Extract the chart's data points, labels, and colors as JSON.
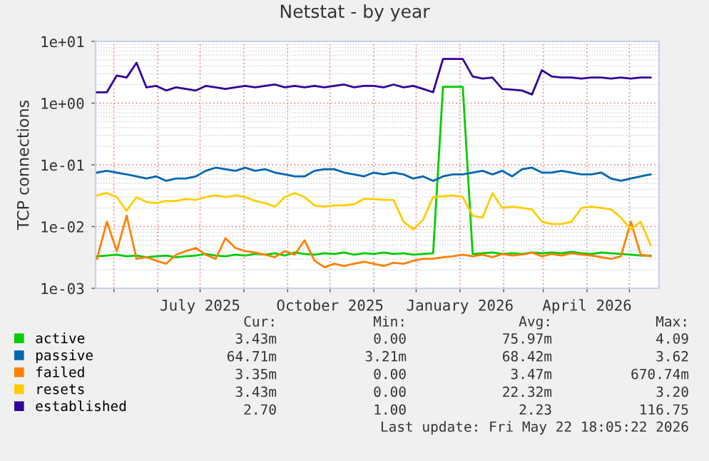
{
  "chart_data": {
    "type": "line",
    "title": "Netstat - by year",
    "ylabel": "TCP connections",
    "x": [
      "2025-04-19",
      "2025-04-26",
      "2025-05-03",
      "2025-05-10",
      "2025-05-17",
      "2025-05-24",
      "2025-05-31",
      "2025-06-07",
      "2025-06-14",
      "2025-06-21",
      "2025-06-28",
      "2025-07-05",
      "2025-07-12",
      "2025-07-19",
      "2025-07-26",
      "2025-08-02",
      "2025-08-09",
      "2025-08-16",
      "2025-08-23",
      "2025-08-30",
      "2025-09-06",
      "2025-09-13",
      "2025-09-20",
      "2025-09-27",
      "2025-10-04",
      "2025-10-11",
      "2025-10-18",
      "2025-10-25",
      "2025-11-01",
      "2025-11-08",
      "2025-11-15",
      "2025-11-22",
      "2025-11-29",
      "2025-12-06",
      "2025-12-13",
      "2025-12-20",
      "2025-12-27",
      "2026-01-03",
      "2026-01-10",
      "2026-01-17",
      "2026-01-24",
      "2026-01-31",
      "2026-02-07",
      "2026-02-14",
      "2026-02-21",
      "2026-02-28",
      "2026-03-07",
      "2026-03-14",
      "2026-03-21",
      "2026-03-28",
      "2026-04-04",
      "2026-04-11",
      "2026-04-18",
      "2026-04-25",
      "2026-05-02",
      "2026-05-09",
      "2026-05-16"
    ],
    "series": [
      {
        "name": "active",
        "color": "#00cc00",
        "values": [
          0.0033,
          0.0034,
          0.0035,
          0.0033,
          0.0034,
          0.0032,
          0.0033,
          0.0034,
          0.0032,
          0.0033,
          0.0034,
          0.0036,
          0.0034,
          0.0033,
          0.0035,
          0.0034,
          0.0036,
          0.0035,
          0.0037,
          0.0034,
          0.0038,
          0.0036,
          0.0035,
          0.0037,
          0.0036,
          0.0038,
          0.0035,
          0.0037,
          0.0036,
          0.0038,
          0.0036,
          0.0037,
          0.0035,
          0.0036,
          0.0037,
          1.84,
          1.84,
          1.84,
          0.0036,
          0.0037,
          0.0038,
          0.0036,
          0.0037,
          0.0036,
          0.0038,
          0.0037,
          0.0038,
          0.0037,
          0.0039,
          0.0037,
          0.0036,
          0.0038,
          0.0037,
          0.0036,
          0.0035,
          0.0034,
          0.0034
        ]
      },
      {
        "name": "passive",
        "color": "#0066b3",
        "values": [
          0.075,
          0.08,
          0.075,
          0.07,
          0.065,
          0.06,
          0.065,
          0.055,
          0.06,
          0.06,
          0.065,
          0.08,
          0.09,
          0.085,
          0.08,
          0.09,
          0.08,
          0.085,
          0.075,
          0.07,
          0.065,
          0.065,
          0.08,
          0.085,
          0.085,
          0.075,
          0.07,
          0.065,
          0.075,
          0.07,
          0.075,
          0.07,
          0.06,
          0.065,
          0.055,
          0.065,
          0.07,
          0.07,
          0.075,
          0.08,
          0.07,
          0.08,
          0.065,
          0.085,
          0.09,
          0.075,
          0.075,
          0.08,
          0.075,
          0.07,
          0.07,
          0.075,
          0.06,
          0.055,
          0.06,
          0.065,
          0.07
        ]
      },
      {
        "name": "failed",
        "color": "#ff8000",
        "values": [
          0.003,
          0.012,
          0.004,
          0.015,
          0.003,
          0.0032,
          0.0028,
          0.0025,
          0.0035,
          0.004,
          0.0045,
          0.0035,
          0.003,
          0.0065,
          0.0045,
          0.004,
          0.0038,
          0.0035,
          0.0032,
          0.004,
          0.0035,
          0.006,
          0.0028,
          0.0022,
          0.0025,
          0.0023,
          0.0025,
          0.0027,
          0.0025,
          0.0023,
          0.0026,
          0.0025,
          0.0028,
          0.003,
          0.003,
          0.0032,
          0.0033,
          0.0035,
          0.0033,
          0.0035,
          0.0032,
          0.0036,
          0.0034,
          0.0035,
          0.0038,
          0.0033,
          0.0036,
          0.0034,
          0.0037,
          0.0035,
          0.0034,
          0.0032,
          0.003,
          0.0033,
          0.012,
          0.0035,
          0.0033
        ]
      },
      {
        "name": "resets",
        "color": "#ffcc00",
        "values": [
          0.032,
          0.035,
          0.03,
          0.018,
          0.03,
          0.025,
          0.024,
          0.026,
          0.026,
          0.028,
          0.027,
          0.03,
          0.032,
          0.03,
          0.032,
          0.03,
          0.026,
          0.024,
          0.021,
          0.03,
          0.035,
          0.03,
          0.022,
          0.021,
          0.022,
          0.022,
          0.023,
          0.028,
          0.028,
          0.027,
          0.027,
          0.012,
          0.009,
          0.013,
          0.03,
          0.031,
          0.032,
          0.03,
          0.015,
          0.014,
          0.035,
          0.02,
          0.021,
          0.02,
          0.019,
          0.012,
          0.011,
          0.011,
          0.012,
          0.02,
          0.021,
          0.02,
          0.019,
          0.014,
          0.009,
          0.012,
          0.005
        ]
      },
      {
        "name": "established",
        "color": "#330099",
        "values": [
          1.5,
          1.5,
          2.8,
          2.6,
          4.5,
          1.8,
          1.9,
          1.6,
          1.8,
          1.7,
          1.6,
          1.9,
          1.8,
          1.7,
          1.8,
          1.9,
          1.8,
          1.9,
          2.0,
          1.8,
          1.9,
          1.8,
          1.9,
          1.8,
          1.9,
          2.0,
          1.8,
          1.9,
          1.9,
          1.8,
          2.0,
          1.8,
          1.9,
          1.7,
          1.5,
          5.2,
          5.2,
          5.2,
          2.7,
          2.5,
          2.6,
          1.7,
          1.65,
          1.6,
          1.38,
          3.4,
          2.7,
          2.6,
          2.6,
          2.5,
          2.6,
          2.6,
          2.5,
          2.6,
          2.5,
          2.6,
          2.6
        ]
      }
    ],
    "log": true,
    "xlim": [
      "2025-04-18",
      "2026-05-22"
    ],
    "xticks": [
      {
        "value": "2025-05-01",
        "label": null
      },
      {
        "value": "2025-06-01",
        "label": null
      },
      {
        "value": "2025-07-01",
        "label": "July 2025"
      },
      {
        "value": "2025-08-01",
        "label": null
      },
      {
        "value": "2025-09-01",
        "label": null
      },
      {
        "value": "2025-10-01",
        "label": "October 2025"
      },
      {
        "value": "2025-11-01",
        "label": null
      },
      {
        "value": "2025-12-01",
        "label": null
      },
      {
        "value": "2026-01-01",
        "label": "January 2026"
      },
      {
        "value": "2026-02-01",
        "label": null
      },
      {
        "value": "2026-03-01",
        "label": null
      },
      {
        "value": "2026-04-01",
        "label": "April 2026"
      },
      {
        "value": "2026-05-01",
        "label": null
      }
    ],
    "ylim": [
      0.001,
      10
    ],
    "yticks": [
      {
        "value": 0.001,
        "label": "1e-03"
      },
      {
        "value": 0.01,
        "label": "1e-02"
      },
      {
        "value": 0.1,
        "label": "1e-01"
      },
      {
        "value": 1,
        "label": "1e+00"
      },
      {
        "value": 10,
        "label": "1e+01"
      }
    ],
    "grid": true,
    "legend": "bottom",
    "marker": "none",
    "line_style": "solid",
    "annotations": [
      "Cur:",
      "Min:",
      "Avg:",
      "Max:",
      "3.43m",
      "0.00",
      "75.97m",
      "4.09",
      "64.71m",
      "3.21m",
      "68.42m",
      "3.62",
      "3.35m",
      "0.00",
      "3.47m",
      "670.74m",
      "3.43m",
      "0.00",
      "22.32m",
      "3.20",
      "2.70",
      "1.00",
      "2.23",
      "116.75",
      "Last update: Fri May 22 18:05:22 2026"
    ]
  }
}
